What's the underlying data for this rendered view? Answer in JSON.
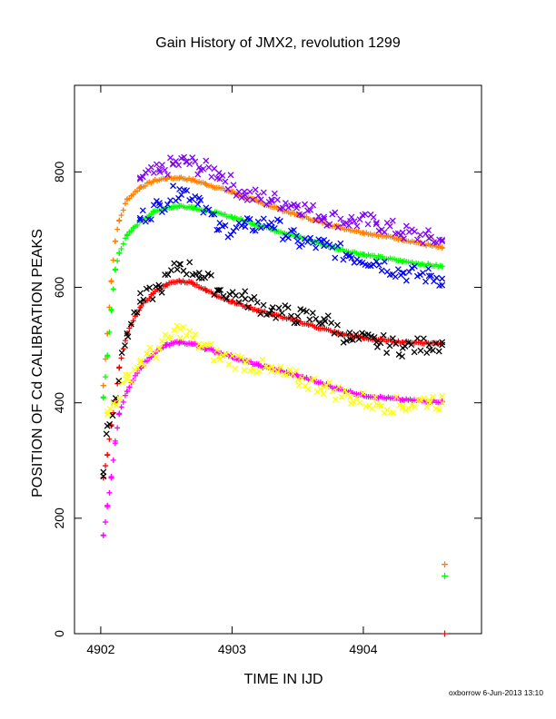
{
  "chart_data": {
    "type": "scatter",
    "title": "Gain History of JMX2, revolution 1299",
    "xlabel": "TIME IN IJD",
    "ylabel": "POSITION OF Cd CALIBRATION PEAKS",
    "xlim": [
      4901.8,
      4904.9
    ],
    "ylim": [
      0,
      950
    ],
    "xticks": [
      4902,
      4903,
      4904
    ],
    "xtick_labels": [
      "4902",
      "4903",
      "4904"
    ],
    "yticks": [
      0,
      200,
      400,
      600,
      800
    ],
    "ytick_labels": [
      "0",
      "200",
      "400",
      "600",
      "800"
    ],
    "grid": false,
    "legend": "none",
    "series": [
      {
        "color": "#ff8000",
        "marker": "plus",
        "smooth": true,
        "x": [
          4902.02,
          4902.05,
          4902.08,
          4902.11,
          4902.14,
          4902.2,
          4902.3,
          4902.4,
          4902.5,
          4902.6,
          4902.7,
          4902.8,
          4903.0,
          4903.2,
          4903.5,
          4903.8,
          4904.0,
          4904.3,
          4904.6
        ],
        "y": [
          430,
          520,
          610,
          680,
          715,
          752,
          773,
          784,
          789,
          790,
          786,
          779,
          765,
          748,
          725,
          705,
          695,
          683,
          668
        ]
      },
      {
        "color": "#8000ff",
        "marker": "x",
        "smooth": false,
        "x": [
          4902.3,
          4902.45,
          4902.55,
          4902.65,
          4902.75,
          4902.9,
          4903.1,
          4903.3,
          4903.5,
          4903.7,
          4903.9,
          4904.1,
          4904.3,
          4904.5,
          4904.6
        ],
        "y": [
          790,
          800,
          813,
          818,
          808,
          798,
          760,
          752,
          742,
          722,
          715,
          712,
          695,
          685,
          680
        ]
      },
      {
        "color": "#00ff00",
        "marker": "plus",
        "smooth": true,
        "x": [
          4902.02,
          4902.05,
          4902.08,
          4902.11,
          4902.14,
          4902.2,
          4902.3,
          4902.4,
          4902.5,
          4902.6,
          4902.7,
          4902.8,
          4903.0,
          4903.2,
          4903.5,
          4903.8,
          4904.0,
          4904.3,
          4904.6
        ],
        "y": [
          410,
          480,
          560,
          630,
          660,
          690,
          715,
          730,
          738,
          741,
          739,
          733,
          722,
          708,
          688,
          667,
          657,
          645,
          636
        ]
      },
      {
        "color": "#0000ff",
        "marker": "x",
        "smooth": false,
        "x": [
          4902.3,
          4902.45,
          4902.6,
          4902.75,
          4902.9,
          4903.1,
          4903.3,
          4903.5,
          4903.7,
          4903.9,
          4904.1,
          4904.3,
          4904.5,
          4904.6
        ],
        "y": [
          720,
          742,
          770,
          755,
          700,
          705,
          712,
          680,
          672,
          655,
          645,
          625,
          620,
          615
        ]
      },
      {
        "color": "#ff0000",
        "marker": "plus",
        "smooth": true,
        "x": [
          4902.02,
          4902.05,
          4902.08,
          4902.11,
          4902.14,
          4902.2,
          4902.3,
          4902.4,
          4902.5,
          4902.6,
          4902.7,
          4902.8,
          4903.0,
          4903.2,
          4903.5,
          4903.8,
          4904.0,
          4904.3,
          4904.6
        ],
        "y": [
          270,
          310,
          360,
          400,
          460,
          520,
          565,
          590,
          605,
          611,
          608,
          595,
          575,
          560,
          541,
          521,
          512,
          505,
          503
        ]
      },
      {
        "color": "#000000",
        "marker": "x",
        "smooth": false,
        "x": [
          4902.02,
          4902.05,
          4902.1,
          4902.2,
          4902.3,
          4902.45,
          4902.6,
          4902.75,
          4902.9,
          4903.1,
          4903.3,
          4903.5,
          4903.7,
          4903.9,
          4904.1,
          4904.3,
          4904.5,
          4904.6
        ],
        "y": [
          280,
          360,
          400,
          520,
          575,
          600,
          640,
          625,
          595,
          580,
          560,
          550,
          545,
          510,
          505,
          495,
          500,
          505
        ]
      },
      {
        "color": "#ff00ff",
        "marker": "plus",
        "smooth": true,
        "x": [
          4902.02,
          4902.05,
          4902.08,
          4902.11,
          4902.14,
          4902.2,
          4902.3,
          4902.4,
          4902.5,
          4902.6,
          4902.7,
          4902.8,
          4903.0,
          4903.2,
          4903.5,
          4903.8,
          4904.0,
          4904.3,
          4904.6
        ],
        "y": [
          170,
          220,
          270,
          330,
          380,
          420,
          460,
          485,
          500,
          505,
          502,
          494,
          480,
          465,
          447,
          425,
          413,
          405,
          402
        ]
      },
      {
        "color": "#ffff00",
        "marker": "x",
        "smooth": false,
        "x": [
          4902.05,
          4902.2,
          4902.3,
          4902.45,
          4902.6,
          4902.75,
          4902.9,
          4903.1,
          4903.3,
          4903.5,
          4903.7,
          4903.9,
          4904.1,
          4904.3,
          4904.5,
          4904.6
        ],
        "y": [
          380,
          440,
          470,
          495,
          528,
          502,
          480,
          470,
          455,
          440,
          428,
          410,
          398,
          395,
          405,
          400
        ]
      }
    ],
    "edge_markers": [
      {
        "color": "#ff8000",
        "x": 4904.62,
        "y": 120
      },
      {
        "color": "#00ff00",
        "x": 4904.62,
        "y": 100
      },
      {
        "color": "#ff0000",
        "x": 4904.62,
        "y": 0
      }
    ]
  },
  "footer": {
    "credit": "oxborrow  6-Jun-2013 13:10"
  },
  "colors": {
    "axis": "#000000",
    "background": "#ffffff"
  }
}
